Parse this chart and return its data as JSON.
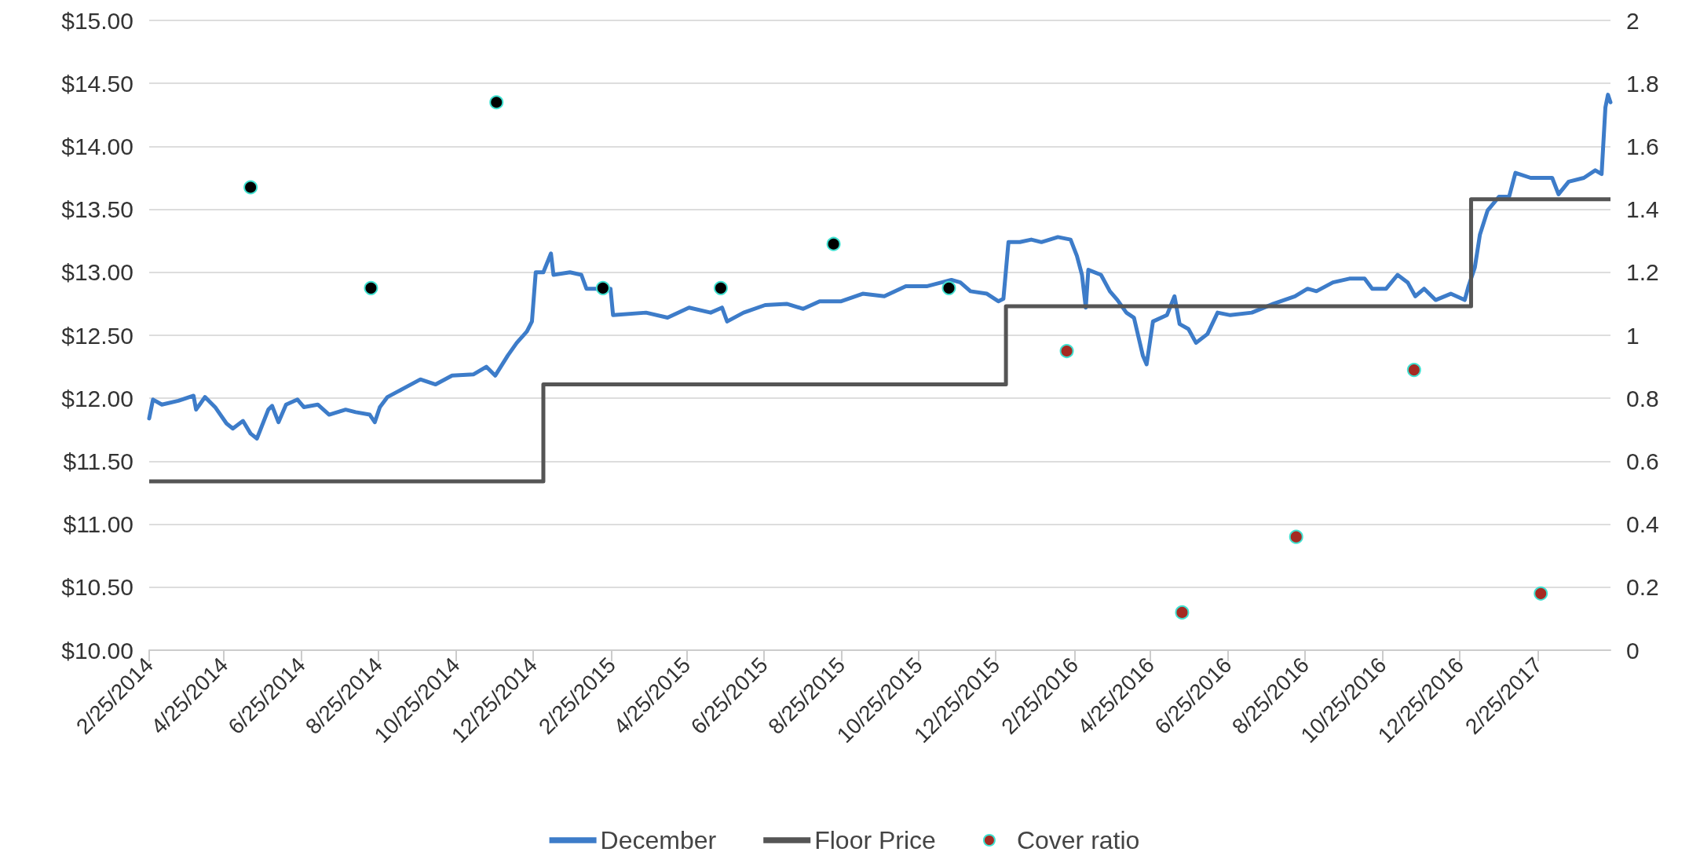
{
  "chart_data": {
    "type": "line",
    "xlim": [
      "2014-02-25",
      "2017-04-23"
    ],
    "xticks": [
      {
        "value": "2014-02-25",
        "label": "2/25/2014"
      },
      {
        "value": "2014-04-25",
        "label": "4/25/2014"
      },
      {
        "value": "2014-06-25",
        "label": "6/25/2014"
      },
      {
        "value": "2014-08-25",
        "label": "8/25/2014"
      },
      {
        "value": "2014-10-25",
        "label": "10/25/2014"
      },
      {
        "value": "2014-12-25",
        "label": "12/25/2014"
      },
      {
        "value": "2015-02-25",
        "label": "2/25/2015"
      },
      {
        "value": "2015-04-25",
        "label": "4/25/2015"
      },
      {
        "value": "2015-06-25",
        "label": "6/25/2015"
      },
      {
        "value": "2015-08-25",
        "label": "8/25/2015"
      },
      {
        "value": "2015-10-25",
        "label": "10/25/2015"
      },
      {
        "value": "2015-12-25",
        "label": "12/25/2015"
      },
      {
        "value": "2016-02-25",
        "label": "2/25/2016"
      },
      {
        "value": "2016-04-25",
        "label": "4/25/2016"
      },
      {
        "value": "2016-06-25",
        "label": "6/25/2016"
      },
      {
        "value": "2016-08-25",
        "label": "8/25/2016"
      },
      {
        "value": "2016-10-25",
        "label": "10/25/2016"
      },
      {
        "value": "2016-12-25",
        "label": "12/25/2016"
      },
      {
        "value": "2017-02-25",
        "label": "2/25/2017"
      }
    ],
    "ylim": [
      10,
      15
    ],
    "yticks": [
      {
        "value": 10,
        "label": "$10.00"
      },
      {
        "value": 10.5,
        "label": "$10.50"
      },
      {
        "value": 11,
        "label": "$11.00"
      },
      {
        "value": 11.5,
        "label": "$11.50"
      },
      {
        "value": 12,
        "label": "$12.00"
      },
      {
        "value": 12.5,
        "label": "$12.50"
      },
      {
        "value": 13,
        "label": "$13.00"
      },
      {
        "value": 13.5,
        "label": "$13.50"
      },
      {
        "value": 14,
        "label": "$14.00"
      },
      {
        "value": 14.5,
        "label": "$14.50"
      },
      {
        "value": 15,
        "label": "$15.00"
      }
    ],
    "y2lim": [
      0,
      2
    ],
    "y2ticks": [
      0,
      0.2,
      0.4,
      0.6,
      0.8,
      1,
      1.2,
      1.4,
      1.6,
      1.8,
      2
    ],
    "grid": "y",
    "legend": "bottom",
    "series": [
      {
        "name": "December",
        "color": "#3d7cc9",
        "marker": "none",
        "x": [
          "2014-02-25",
          "2014-02-28",
          "2014-03-07",
          "2014-03-20",
          "2014-04-01",
          "2014-04-03",
          "2014-04-10",
          "2014-04-18",
          "2014-04-27",
          "2014-05-02",
          "2014-05-10",
          "2014-05-16",
          "2014-05-21",
          "2014-05-30",
          "2014-06-02",
          "2014-06-07",
          "2014-06-13",
          "2014-06-22",
          "2014-06-27",
          "2014-07-08",
          "2014-07-17",
          "2014-07-30",
          "2014-08-07",
          "2014-08-18",
          "2014-08-22",
          "2014-08-26",
          "2014-09-01",
          "2014-09-14",
          "2014-09-27",
          "2014-10-09",
          "2014-10-22",
          "2014-11-08",
          "2014-11-18",
          "2014-11-25",
          "2014-12-05",
          "2014-12-12",
          "2014-12-20",
          "2014-12-24",
          "2014-12-27",
          "2015-01-02",
          "2015-01-08",
          "2015-01-10",
          "2015-01-23",
          "2015-02-01",
          "2015-02-05",
          "2015-02-24",
          "2015-02-26",
          "2015-03-24",
          "2015-04-10",
          "2015-04-27",
          "2015-05-14",
          "2015-05-23",
          "2015-05-27",
          "2015-06-09",
          "2015-06-26",
          "2015-07-13",
          "2015-07-26",
          "2015-08-08",
          "2015-08-25",
          "2015-09-11",
          "2015-09-28",
          "2015-10-15",
          "2015-11-01",
          "2015-11-20",
          "2015-11-27",
          "2015-12-05",
          "2015-12-18",
          "2015-12-27",
          "2015-12-31",
          "2016-01-04",
          "2016-01-13",
          "2016-01-22",
          "2016-01-30",
          "2016-02-12",
          "2016-02-22",
          "2016-02-27",
          "2016-03-02",
          "2016-03-05",
          "2016-03-07",
          "2016-03-17",
          "2016-03-24",
          "2016-03-30",
          "2016-04-06",
          "2016-04-12",
          "2016-04-19",
          "2016-04-22",
          "2016-04-27",
          "2016-05-08",
          "2016-05-14",
          "2016-05-18",
          "2016-05-25",
          "2016-05-31",
          "2016-06-09",
          "2016-06-17",
          "2016-06-27",
          "2016-07-14",
          "2016-07-31",
          "2016-08-17",
          "2016-08-27",
          "2016-09-03",
          "2016-09-16",
          "2016-09-29",
          "2016-10-11",
          "2016-10-17",
          "2016-10-28",
          "2016-11-06",
          "2016-11-14",
          "2016-11-20",
          "2016-11-27",
          "2016-12-06",
          "2016-12-18",
          "2016-12-29",
          "2017-01-01",
          "2017-01-06",
          "2017-01-10",
          "2017-01-16",
          "2017-01-25",
          "2017-02-02",
          "2017-02-07",
          "2017-02-19",
          "2017-03-08",
          "2017-03-13",
          "2017-03-21",
          "2017-04-02",
          "2017-04-11",
          "2017-04-16",
          "2017-04-19",
          "2017-04-21",
          "2017-04-23"
        ],
        "values": [
          11.84,
          11.99,
          11.95,
          11.98,
          12.02,
          11.91,
          12.01,
          11.93,
          11.8,
          11.76,
          11.82,
          11.72,
          11.68,
          11.91,
          11.94,
          11.81,
          11.95,
          11.99,
          11.93,
          11.95,
          11.87,
          11.91,
          11.89,
          11.87,
          11.81,
          11.93,
          12.01,
          12.08,
          12.15,
          12.11,
          12.18,
          12.19,
          12.25,
          12.18,
          12.34,
          12.44,
          12.53,
          12.61,
          13.0,
          13.0,
          13.15,
          12.98,
          13.0,
          12.98,
          12.87,
          12.87,
          12.66,
          12.68,
          12.64,
          12.72,
          12.68,
          12.72,
          12.61,
          12.68,
          12.74,
          12.75,
          12.71,
          12.77,
          12.77,
          12.83,
          12.81,
          12.89,
          12.89,
          12.94,
          12.92,
          12.85,
          12.83,
          12.77,
          12.79,
          13.24,
          13.24,
          13.26,
          13.24,
          13.28,
          13.26,
          13.13,
          12.98,
          12.72,
          13.02,
          12.98,
          12.85,
          12.78,
          12.68,
          12.64,
          12.34,
          12.27,
          12.61,
          12.66,
          12.81,
          12.59,
          12.55,
          12.44,
          12.51,
          12.68,
          12.66,
          12.68,
          12.75,
          12.81,
          12.87,
          12.85,
          12.92,
          12.95,
          12.95,
          12.87,
          12.87,
          12.98,
          12.92,
          12.81,
          12.87,
          12.78,
          12.83,
          12.78,
          12.89,
          13.04,
          13.3,
          13.49,
          13.6,
          13.6,
          13.79,
          13.75,
          13.75,
          13.62,
          13.72,
          13.75,
          13.81,
          13.78,
          14.31,
          14.41,
          14.35
        ]
      },
      {
        "name": "Floor Price",
        "type": "step",
        "color": "#555555",
        "marker": "none",
        "x": [
          "2014-02-25",
          "2015-01-02",
          "2016-01-02",
          "2017-01-03",
          "2017-04-23"
        ],
        "values": [
          11.34,
          12.11,
          12.73,
          13.58,
          13.58
        ]
      },
      {
        "name": "Cover ratio",
        "type": "scatter",
        "axis": "y2",
        "color": "#a52a22",
        "marker": "circle",
        "x": [
          "2014-05-16",
          "2014-08-19",
          "2014-11-26",
          "2015-02-18",
          "2015-05-22",
          "2015-08-19",
          "2015-11-18",
          "2016-02-19",
          "2016-05-20",
          "2016-08-18",
          "2016-11-19",
          "2017-02-27"
        ],
        "values": [
          1.47,
          1.15,
          1.74,
          1.15,
          1.15,
          1.29,
          1.15,
          0.95,
          0.12,
          0.36,
          0.89,
          0.18
        ],
        "colors": [
          "#000000",
          "#000000",
          "#000000",
          "#000000",
          "#000000",
          "#000000",
          "#000000",
          "#a52a22",
          "#a52a22",
          "#a52a22",
          "#a52a22",
          "#a52a22"
        ]
      }
    ]
  }
}
